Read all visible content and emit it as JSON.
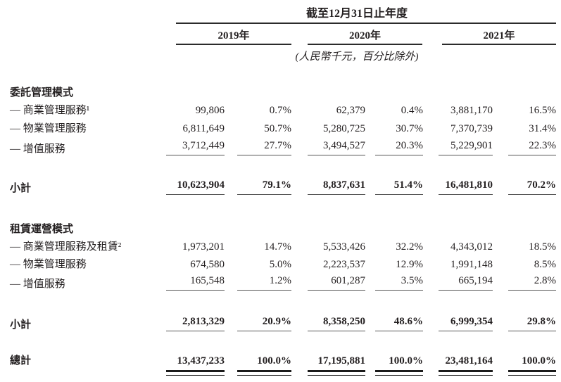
{
  "header": {
    "period_title": "截至12月31日止年度",
    "years": [
      "2019年",
      "2020年",
      "2021年"
    ],
    "unit_note": "(人民幣千元，百分比除外)"
  },
  "table": {
    "sections": [
      {
        "title": "委託管理模式",
        "rows": [
          {
            "label": "— 商業管理服務¹",
            "values": [
              "99,806",
              "0.7%",
              "62,379",
              "0.4%",
              "3,881,170",
              "16.5%"
            ]
          },
          {
            "label": "— 物業管理服務",
            "values": [
              "6,811,649",
              "50.7%",
              "5,280,725",
              "30.7%",
              "7,370,739",
              "31.4%"
            ]
          },
          {
            "label": "— 增值服務",
            "values": [
              "3,712,449",
              "27.7%",
              "3,494,527",
              "20.3%",
              "5,229,901",
              "22.3%"
            ]
          }
        ],
        "subtotal": {
          "label": "小計",
          "values": [
            "10,623,904",
            "79.1%",
            "8,837,631",
            "51.4%",
            "16,481,810",
            "70.2%"
          ]
        }
      },
      {
        "title": "租賃運營模式",
        "rows": [
          {
            "label": "— 商業管理服務及租賃²",
            "values": [
              "1,973,201",
              "14.7%",
              "5,533,426",
              "32.2%",
              "4,343,012",
              "18.5%"
            ]
          },
          {
            "label": "— 物業管理服務",
            "values": [
              "674,580",
              "5.0%",
              "2,223,537",
              "12.9%",
              "1,991,148",
              "8.5%"
            ]
          },
          {
            "label": "— 增值服務",
            "values": [
              "165,548",
              "1.2%",
              "601,287",
              "3.5%",
              "665,194",
              "2.8%"
            ]
          }
        ],
        "subtotal": {
          "label": "小計",
          "values": [
            "2,813,329",
            "20.9%",
            "8,358,250",
            "48.6%",
            "6,999,354",
            "29.8%"
          ]
        }
      }
    ],
    "total": {
      "label": "總計",
      "values": [
        "13,437,233",
        "100.0%",
        "17,195,881",
        "100.0%",
        "23,481,164",
        "100.0%"
      ]
    }
  }
}
